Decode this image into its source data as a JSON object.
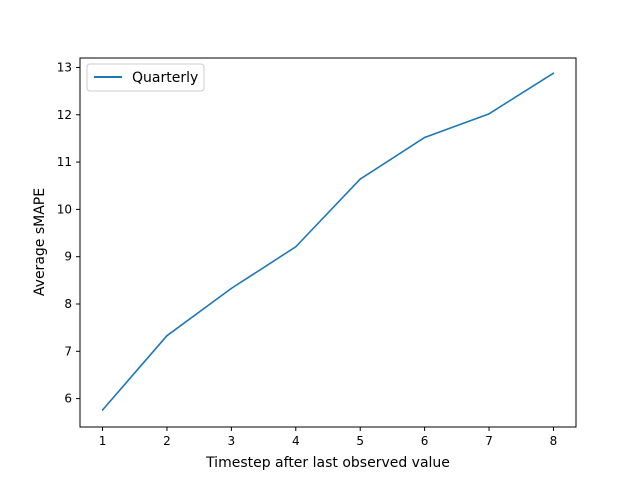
{
  "chart_data": {
    "type": "line",
    "title": "",
    "xlabel": "Timestep after last observed value",
    "ylabel": "Average sMAPE",
    "x": [
      1,
      2,
      3,
      4,
      5,
      6,
      7,
      8
    ],
    "xticks": [
      "1",
      "2",
      "3",
      "4",
      "5",
      "6",
      "7",
      "8"
    ],
    "yticks": [
      "6",
      "7",
      "8",
      "9",
      "10",
      "11",
      "12",
      "13"
    ],
    "xlim": [
      0.65,
      8.35
    ],
    "ylim": [
      5.4,
      13.2
    ],
    "series": [
      {
        "name": "Quarterly",
        "color": "#1f77b4",
        "values": [
          5.76,
          7.33,
          8.33,
          9.21,
          10.64,
          11.52,
          12.02,
          12.88
        ]
      }
    ],
    "legend": {
      "position": "upper-left",
      "entries": [
        "Quarterly"
      ]
    },
    "grid": false
  }
}
